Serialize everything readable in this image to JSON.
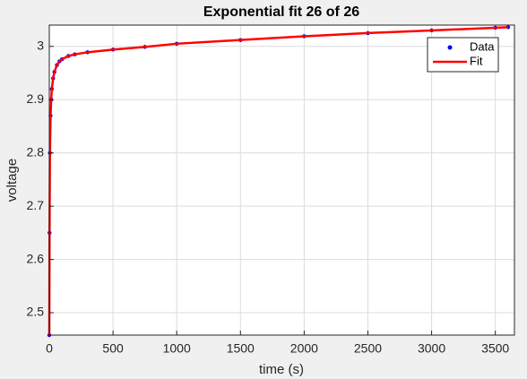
{
  "chart_data": {
    "type": "line",
    "title": "Exponential fit 26 of 26",
    "x_label": "time (s)",
    "y_label": "voltage",
    "x": [
      0,
      2,
      5,
      10,
      15,
      20,
      30,
      40,
      60,
      80,
      100,
      150,
      200,
      300,
      500,
      750,
      1000,
      1500,
      2000,
      2500,
      3000,
      3500,
      3600
    ],
    "series": [
      {
        "name": "Data",
        "color": "#0000ff",
        "marker": "dot",
        "values": [
          2.458,
          2.65,
          2.8,
          2.87,
          2.9,
          2.92,
          2.94,
          2.952,
          2.965,
          2.972,
          2.976,
          2.982,
          2.985,
          2.989,
          2.994,
          2.999,
          3.005,
          3.012,
          3.019,
          3.025,
          3.03,
          3.035,
          3.036
        ]
      },
      {
        "name": "Fit",
        "color": "#ff0000",
        "marker": "line",
        "values": [
          2.458,
          2.65,
          2.8,
          2.87,
          2.9,
          2.92,
          2.94,
          2.952,
          2.965,
          2.972,
          2.976,
          2.982,
          2.985,
          2.989,
          2.994,
          2.999,
          3.005,
          3.012,
          3.019,
          3.025,
          3.03,
          3.035,
          3.036
        ]
      }
    ],
    "xlim": [
      0,
      3650
    ],
    "ylim": [
      2.458,
      3.04
    ],
    "xticks": [
      0,
      500,
      1000,
      1500,
      2000,
      2500,
      3000,
      3500
    ],
    "yticks": [
      2.5,
      2.6,
      2.7,
      2.8,
      2.9,
      3
    ],
    "grid": true,
    "legend": "top-right"
  }
}
